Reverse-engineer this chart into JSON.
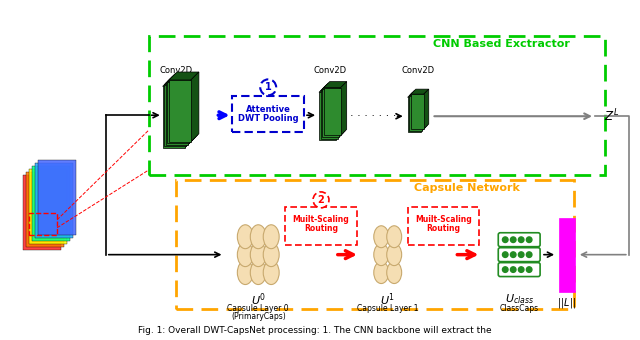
{
  "title": "Fig. 1: Overall DWT-CapsNet processing: 1. The CNN backbone will extract the",
  "cnn_box_color": "#00cc00",
  "caps_box_color": "#FFA500",
  "cnn_label": "CNN Based Exctractor",
  "caps_label": "Capsule Network",
  "bg_color": "#ffffff",
  "green_color": "#228B22",
  "orange_color": "#FFA500",
  "blue_color": "#0000FF",
  "red_color": "#FF0000",
  "magenta_color": "#FF00FF",
  "gray_color": "#888888",
  "dwt_box_color": "#0000CD",
  "routing_box_color": "#FF0000"
}
